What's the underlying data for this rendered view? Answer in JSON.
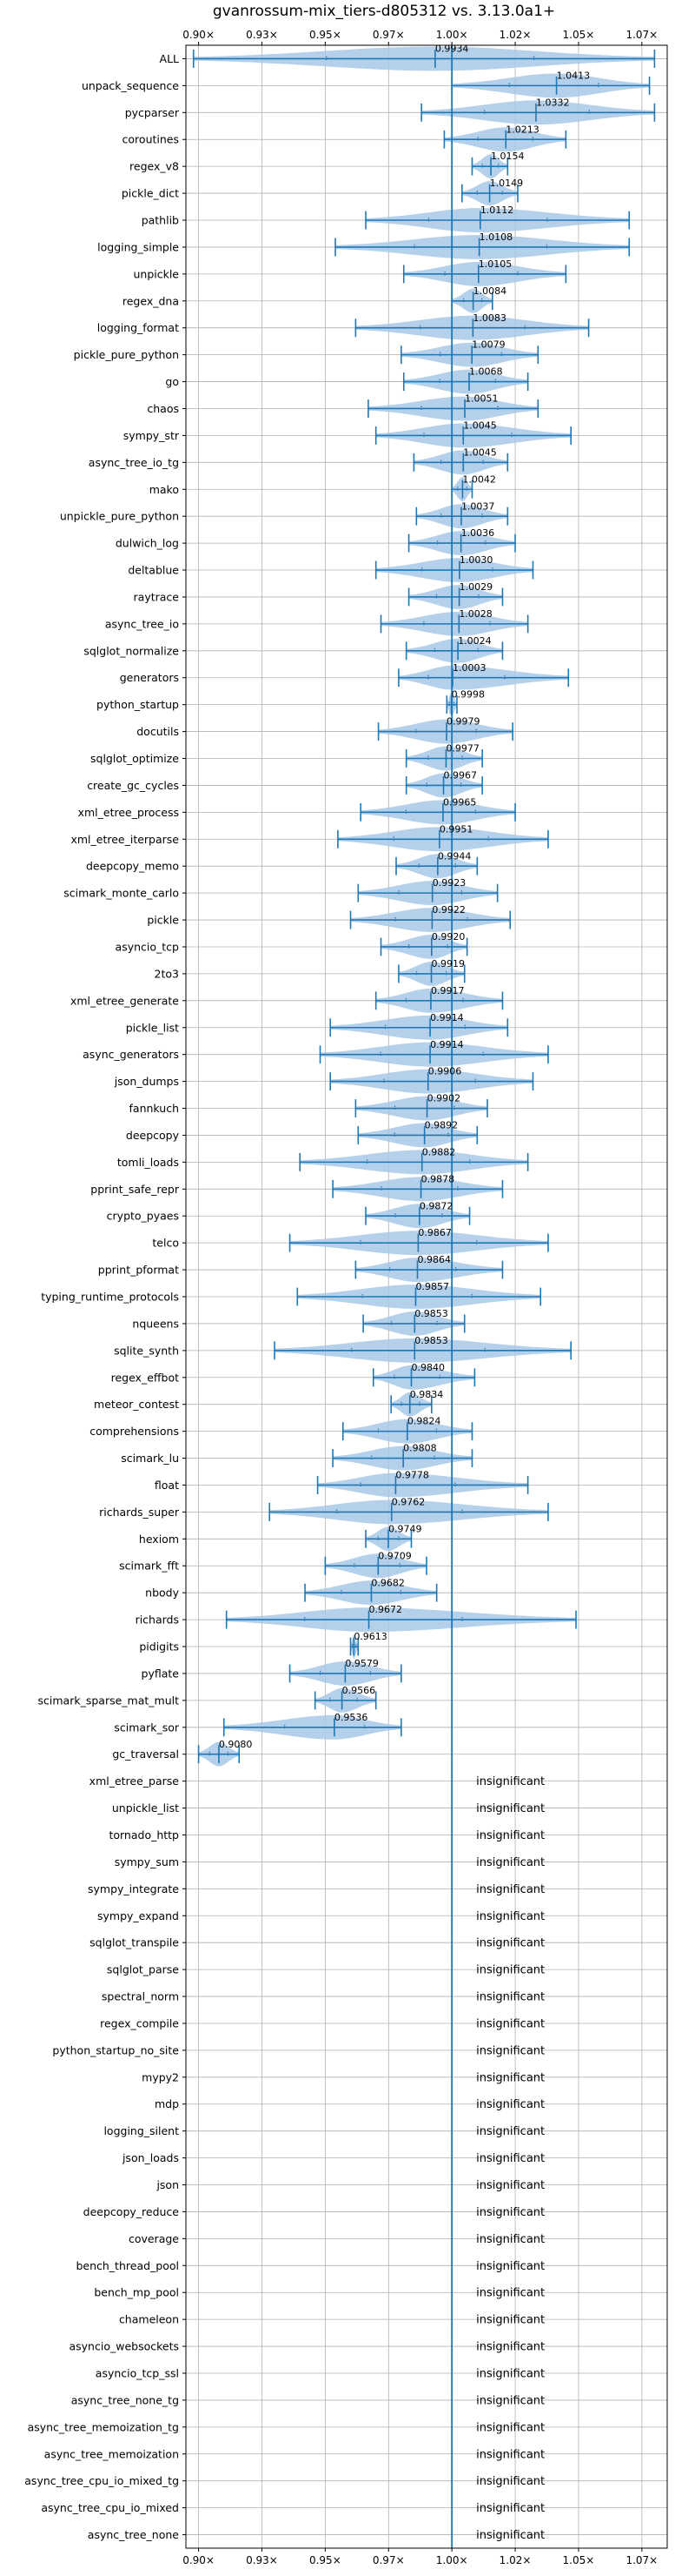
{
  "colors": {
    "violin": "#a7c8e6",
    "line": "#1f77b4",
    "grid": "#b0b0b0",
    "axis": "#000000",
    "ref": "#1f77b4"
  },
  "chart_data": {
    "type": "violin",
    "title": "gvanrossum-mix_tiers-d805312 vs. 3.13.0a1+",
    "xlim": [
      0.895,
      1.085
    ],
    "x_ticks": [
      0.9,
      0.925,
      0.95,
      0.975,
      1.0,
      1.025,
      1.05,
      1.075
    ],
    "x_tick_labels": [
      "0.90×",
      "0.93×",
      "0.95×",
      "0.97×",
      "1.00×",
      "1.02×",
      "1.05×",
      "1.07×"
    ],
    "reference_line": 1.0,
    "grid": true,
    "insignificant_label": "insignificant",
    "benchmarks": [
      {
        "name": "ALL",
        "value": 0.9934,
        "min": 0.898,
        "max": 1.08,
        "label": "0.9934"
      },
      {
        "name": "unpack_sequence",
        "value": 1.0413,
        "min": 1.0,
        "max": 1.078,
        "label": "1.0413"
      },
      {
        "name": "pycparser",
        "value": 1.0332,
        "min": 0.988,
        "max": 1.08,
        "label": "1.0332"
      },
      {
        "name": "coroutines",
        "value": 1.0213,
        "min": 0.997,
        "max": 1.045,
        "label": "1.0213"
      },
      {
        "name": "regex_v8",
        "value": 1.0154,
        "min": 1.008,
        "max": 1.022,
        "label": "1.0154"
      },
      {
        "name": "pickle_dict",
        "value": 1.0149,
        "min": 1.004,
        "max": 1.026,
        "label": "1.0149"
      },
      {
        "name": "pathlib",
        "value": 1.0112,
        "min": 0.966,
        "max": 1.07,
        "label": "1.0112"
      },
      {
        "name": "logging_simple",
        "value": 1.0108,
        "min": 0.954,
        "max": 1.07,
        "label": "1.0108"
      },
      {
        "name": "unpickle",
        "value": 1.0105,
        "min": 0.981,
        "max": 1.045,
        "label": "1.0105"
      },
      {
        "name": "regex_dna",
        "value": 1.0084,
        "min": 1.0,
        "max": 1.016,
        "label": "1.0084"
      },
      {
        "name": "logging_format",
        "value": 1.0083,
        "min": 0.962,
        "max": 1.054,
        "label": "1.0083"
      },
      {
        "name": "pickle_pure_python",
        "value": 1.0079,
        "min": 0.98,
        "max": 1.034,
        "label": "1.0079"
      },
      {
        "name": "go",
        "value": 1.0068,
        "min": 0.981,
        "max": 1.03,
        "label": "1.0068"
      },
      {
        "name": "chaos",
        "value": 1.0051,
        "min": 0.967,
        "max": 1.034,
        "label": "1.0051"
      },
      {
        "name": "sympy_str",
        "value": 1.0045,
        "min": 0.97,
        "max": 1.047,
        "label": "1.0045"
      },
      {
        "name": "async_tree_io_tg",
        "value": 1.0045,
        "min": 0.985,
        "max": 1.022,
        "label": "1.0045"
      },
      {
        "name": "mako",
        "value": 1.0042,
        "min": 1.0,
        "max": 1.008,
        "label": "1.0042"
      },
      {
        "name": "unpickle_pure_python",
        "value": 1.0037,
        "min": 0.986,
        "max": 1.022,
        "label": "1.0037"
      },
      {
        "name": "dulwich_log",
        "value": 1.0036,
        "min": 0.983,
        "max": 1.025,
        "label": "1.0036"
      },
      {
        "name": "deltablue",
        "value": 1.003,
        "min": 0.97,
        "max": 1.032,
        "label": "1.0030"
      },
      {
        "name": "raytrace",
        "value": 1.0029,
        "min": 0.983,
        "max": 1.02,
        "label": "1.0029"
      },
      {
        "name": "async_tree_io",
        "value": 1.0028,
        "min": 0.972,
        "max": 1.03,
        "label": "1.0028"
      },
      {
        "name": "sqlglot_normalize",
        "value": 1.0024,
        "min": 0.982,
        "max": 1.02,
        "label": "1.0024"
      },
      {
        "name": "generators",
        "value": 1.0003,
        "min": 0.979,
        "max": 1.046,
        "label": "1.0003"
      },
      {
        "name": "python_startup",
        "value": 0.9998,
        "min": 0.998,
        "max": 1.002,
        "label": "0.9998"
      },
      {
        "name": "docutils",
        "value": 0.9979,
        "min": 0.971,
        "max": 1.024,
        "label": "0.9979"
      },
      {
        "name": "sqlglot_optimize",
        "value": 0.9977,
        "min": 0.982,
        "max": 1.012,
        "label": "0.9977"
      },
      {
        "name": "create_gc_cycles",
        "value": 0.9967,
        "min": 0.982,
        "max": 1.012,
        "label": "0.9967"
      },
      {
        "name": "xml_etree_process",
        "value": 0.9965,
        "min": 0.964,
        "max": 1.025,
        "label": "0.9965"
      },
      {
        "name": "xml_etree_iterparse",
        "value": 0.9951,
        "min": 0.955,
        "max": 1.038,
        "label": "0.9951"
      },
      {
        "name": "deepcopy_memo",
        "value": 0.9944,
        "min": 0.978,
        "max": 1.01,
        "label": "0.9944"
      },
      {
        "name": "scimark_monte_carlo",
        "value": 0.9923,
        "min": 0.963,
        "max": 1.018,
        "label": "0.9923"
      },
      {
        "name": "pickle",
        "value": 0.9922,
        "min": 0.96,
        "max": 1.023,
        "label": "0.9922"
      },
      {
        "name": "asyncio_tcp",
        "value": 0.992,
        "min": 0.972,
        "max": 1.006,
        "label": "0.9920"
      },
      {
        "name": "2to3",
        "value": 0.9919,
        "min": 0.979,
        "max": 1.005,
        "label": "0.9919"
      },
      {
        "name": "xml_etree_generate",
        "value": 0.9917,
        "min": 0.97,
        "max": 1.02,
        "label": "0.9917"
      },
      {
        "name": "pickle_list",
        "value": 0.9914,
        "min": 0.952,
        "max": 1.022,
        "label": "0.9914"
      },
      {
        "name": "async_generators",
        "value": 0.9914,
        "min": 0.948,
        "max": 1.038,
        "label": "0.9914"
      },
      {
        "name": "json_dumps",
        "value": 0.9906,
        "min": 0.952,
        "max": 1.032,
        "label": "0.9906"
      },
      {
        "name": "fannkuch",
        "value": 0.9902,
        "min": 0.962,
        "max": 1.014,
        "label": "0.9902"
      },
      {
        "name": "deepcopy",
        "value": 0.9892,
        "min": 0.963,
        "max": 1.01,
        "label": "0.9892"
      },
      {
        "name": "tomli_loads",
        "value": 0.9882,
        "min": 0.94,
        "max": 1.03,
        "label": "0.9882"
      },
      {
        "name": "pprint_safe_repr",
        "value": 0.9878,
        "min": 0.953,
        "max": 1.02,
        "label": "0.9878"
      },
      {
        "name": "crypto_pyaes",
        "value": 0.9872,
        "min": 0.966,
        "max": 1.007,
        "label": "0.9872"
      },
      {
        "name": "telco",
        "value": 0.9867,
        "min": 0.936,
        "max": 1.038,
        "label": "0.9867"
      },
      {
        "name": "pprint_pformat",
        "value": 0.9864,
        "min": 0.962,
        "max": 1.02,
        "label": "0.9864"
      },
      {
        "name": "typing_runtime_protocols",
        "value": 0.9857,
        "min": 0.939,
        "max": 1.035,
        "label": "0.9857"
      },
      {
        "name": "nqueens",
        "value": 0.9853,
        "min": 0.965,
        "max": 1.005,
        "label": "0.9853"
      },
      {
        "name": "sqlite_synth",
        "value": 0.9853,
        "min": 0.93,
        "max": 1.047,
        "label": "0.9853"
      },
      {
        "name": "regex_effbot",
        "value": 0.984,
        "min": 0.969,
        "max": 1.009,
        "label": "0.9840"
      },
      {
        "name": "meteor_contest",
        "value": 0.9834,
        "min": 0.976,
        "max": 0.992,
        "label": "0.9834"
      },
      {
        "name": "comprehensions",
        "value": 0.9824,
        "min": 0.957,
        "max": 1.008,
        "label": "0.9824"
      },
      {
        "name": "scimark_lu",
        "value": 0.9808,
        "min": 0.953,
        "max": 1.008,
        "label": "0.9808"
      },
      {
        "name": "float",
        "value": 0.9778,
        "min": 0.947,
        "max": 1.03,
        "label": "0.9778"
      },
      {
        "name": "richards_super",
        "value": 0.9762,
        "min": 0.928,
        "max": 1.038,
        "label": "0.9762"
      },
      {
        "name": "hexiom",
        "value": 0.9749,
        "min": 0.966,
        "max": 0.984,
        "label": "0.9749"
      },
      {
        "name": "scimark_fft",
        "value": 0.9709,
        "min": 0.95,
        "max": 0.99,
        "label": "0.9709"
      },
      {
        "name": "nbody",
        "value": 0.9682,
        "min": 0.942,
        "max": 0.994,
        "label": "0.9682"
      },
      {
        "name": "richards",
        "value": 0.9672,
        "min": 0.911,
        "max": 1.049,
        "label": "0.9672"
      },
      {
        "name": "pidigits",
        "value": 0.9613,
        "min": 0.96,
        "max": 0.963,
        "label": "0.9613"
      },
      {
        "name": "pyflate",
        "value": 0.9579,
        "min": 0.936,
        "max": 0.98,
        "label": "0.9579"
      },
      {
        "name": "scimark_sparse_mat_mult",
        "value": 0.9566,
        "min": 0.946,
        "max": 0.97,
        "label": "0.9566"
      },
      {
        "name": "scimark_sor",
        "value": 0.9536,
        "min": 0.91,
        "max": 0.98,
        "label": "0.9536"
      },
      {
        "name": "gc_traversal",
        "value": 0.908,
        "min": 0.9,
        "max": 0.916,
        "label": "0.9080"
      },
      {
        "name": "xml_etree_parse",
        "insignificant": true
      },
      {
        "name": "unpickle_list",
        "insignificant": true
      },
      {
        "name": "tornado_http",
        "insignificant": true
      },
      {
        "name": "sympy_sum",
        "insignificant": true
      },
      {
        "name": "sympy_integrate",
        "insignificant": true
      },
      {
        "name": "sympy_expand",
        "insignificant": true
      },
      {
        "name": "sqlglot_transpile",
        "insignificant": true
      },
      {
        "name": "sqlglot_parse",
        "insignificant": true
      },
      {
        "name": "spectral_norm",
        "insignificant": true
      },
      {
        "name": "regex_compile",
        "insignificant": true
      },
      {
        "name": "python_startup_no_site",
        "insignificant": true
      },
      {
        "name": "mypy2",
        "insignificant": true
      },
      {
        "name": "mdp",
        "insignificant": true
      },
      {
        "name": "logging_silent",
        "insignificant": true
      },
      {
        "name": "json_loads",
        "insignificant": true
      },
      {
        "name": "json",
        "insignificant": true
      },
      {
        "name": "deepcopy_reduce",
        "insignificant": true
      },
      {
        "name": "coverage",
        "insignificant": true
      },
      {
        "name": "bench_thread_pool",
        "insignificant": true
      },
      {
        "name": "bench_mp_pool",
        "insignificant": true
      },
      {
        "name": "chameleon",
        "insignificant": true
      },
      {
        "name": "asyncio_websockets",
        "insignificant": true
      },
      {
        "name": "asyncio_tcp_ssl",
        "insignificant": true
      },
      {
        "name": "async_tree_none_tg",
        "insignificant": true
      },
      {
        "name": "async_tree_memoization_tg",
        "insignificant": true
      },
      {
        "name": "async_tree_memoization",
        "insignificant": true
      },
      {
        "name": "async_tree_cpu_io_mixed_tg",
        "insignificant": true
      },
      {
        "name": "async_tree_cpu_io_mixed",
        "insignificant": true
      },
      {
        "name": "async_tree_none",
        "insignificant": true
      }
    ]
  }
}
